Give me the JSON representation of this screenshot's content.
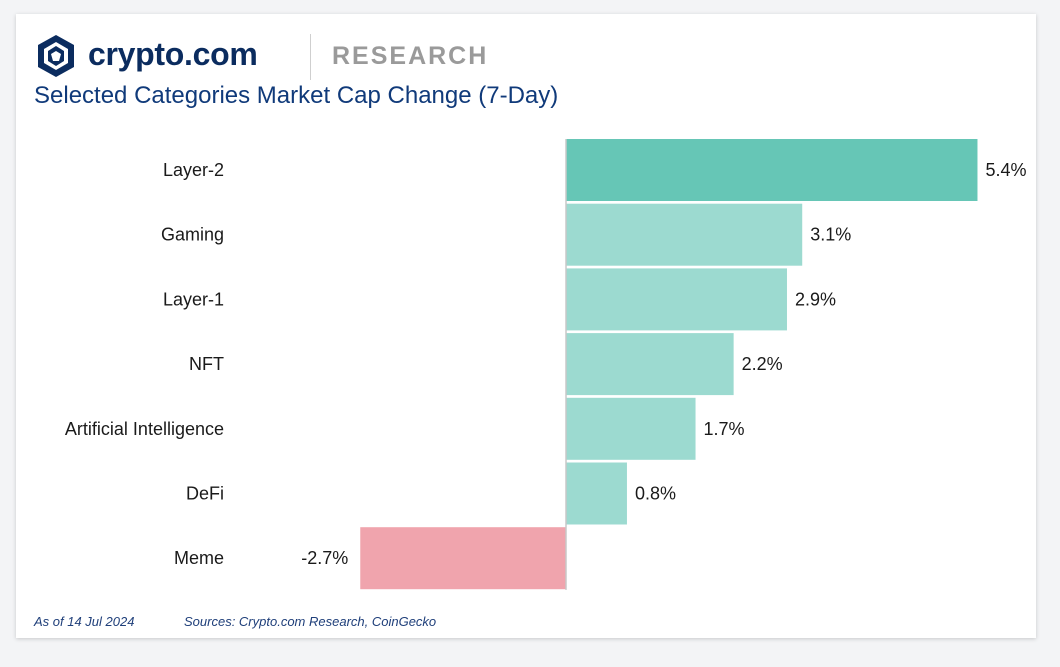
{
  "brand": {
    "name": "crypto.com",
    "division": "RESEARCH",
    "logo_icon": "crypto-com-lion-shield-icon"
  },
  "colors": {
    "positive_top": "#66c6b6",
    "positive": "#9cdad0",
    "negative": "#f0a4ad",
    "title": "#103a7a",
    "brand": "#0b2c5f"
  },
  "chart_data": {
    "type": "bar",
    "orientation": "horizontal",
    "title": "Selected Categories Market Cap Change (7-Day)",
    "categories": [
      "Layer-2",
      "Gaming",
      "Layer-1",
      "NFT",
      "Artificial Intelligence",
      "DeFi",
      "Meme"
    ],
    "values": [
      5.4,
      3.1,
      2.9,
      2.2,
      1.7,
      0.8,
      -2.7
    ],
    "value_labels": [
      "5.4%",
      "3.1%",
      "2.9%",
      "2.2%",
      "1.7%",
      "0.8%",
      "-2.7%"
    ],
    "unit": "%",
    "xlabel": "",
    "ylabel": "",
    "grid": false,
    "legend": "none"
  },
  "footer": {
    "date": "As of 14 Jul 2024",
    "sources": "Sources: Crypto.com Research, CoinGecko"
  }
}
